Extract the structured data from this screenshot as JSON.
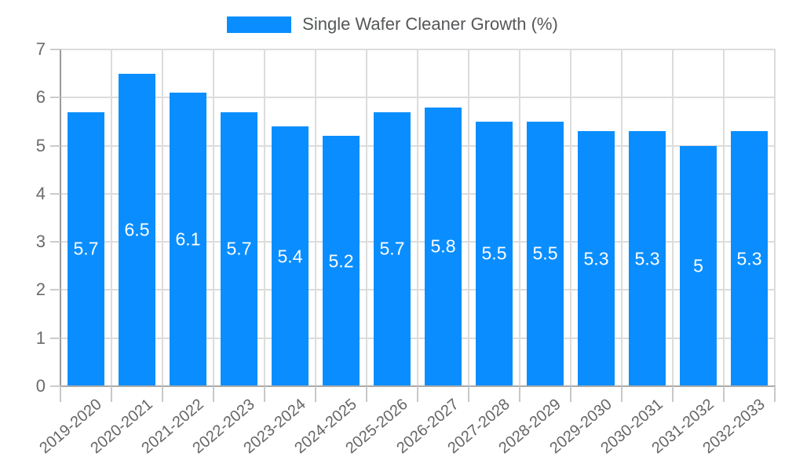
{
  "legend": {
    "label": "Single Wafer Cleaner Growth (%)"
  },
  "chart_data": {
    "type": "bar",
    "title": "",
    "xlabel": "",
    "ylabel": "",
    "categories": [
      "2019-2020",
      "2020-2021",
      "2021-2022",
      "2022-2023",
      "2023-2024",
      "2024-2025",
      "2025-2026",
      "2026-2027",
      "2027-2028",
      "2028-2029",
      "2029-2030",
      "2030-2031",
      "2031-2032",
      "2032-2033"
    ],
    "values": [
      5.7,
      6.5,
      6.1,
      5.7,
      5.4,
      5.2,
      5.7,
      5.8,
      5.5,
      5.5,
      5.3,
      5.3,
      5,
      5.3
    ],
    "value_labels": [
      "5.7",
      "6.5",
      "6.1",
      "5.7",
      "5.4",
      "5.2",
      "5.7",
      "5.8",
      "5.5",
      "5.5",
      "5.3",
      "5.3",
      "5",
      "5.3"
    ],
    "series_name": "Single Wafer Cleaner Growth (%)",
    "ylim": [
      0,
      7
    ],
    "yticks": [
      0,
      1,
      2,
      3,
      4,
      5,
      6,
      7
    ],
    "grid": true,
    "legend_position": "top-center",
    "bar_color": "#0a8eff",
    "value_label_color": "#ffffff"
  }
}
